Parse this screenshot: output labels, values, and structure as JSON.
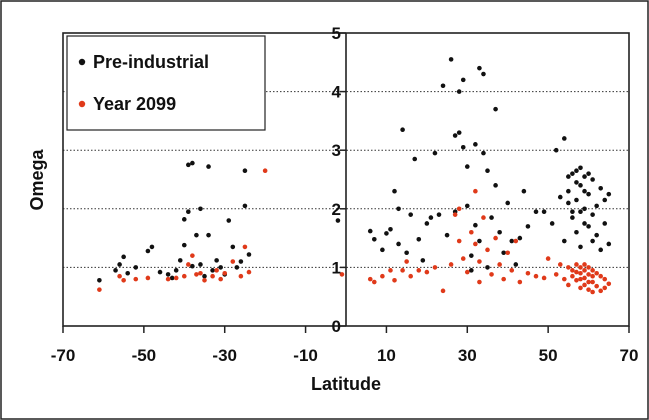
{
  "chart_data": {
    "type": "scatter",
    "xlabel": "Latitude",
    "ylabel": "Omega",
    "xlim": [
      -70,
      70
    ],
    "ylim": [
      0,
      5
    ],
    "x_ticks": [
      "-70",
      "-50",
      "-30",
      "-10",
      "10",
      "30",
      "50",
      "70"
    ],
    "y_ticks": [
      "0",
      "1",
      "2",
      "3",
      "4",
      "5"
    ],
    "grid": "horizontal dotted lines at 1, 2, 3 and 4",
    "legend_position": "top-left",
    "series": [
      {
        "name": "Pre-industrial",
        "color": "#111111",
        "points": [
          [
            -61,
            0.78
          ],
          [
            -57,
            0.95
          ],
          [
            -56,
            1.05
          ],
          [
            -55,
            1.18
          ],
          [
            -54,
            0.9
          ],
          [
            -52,
            1.0
          ],
          [
            -49,
            1.28
          ],
          [
            -48,
            1.35
          ],
          [
            -46,
            0.92
          ],
          [
            -44,
            0.88
          ],
          [
            -43,
            0.82
          ],
          [
            -42,
            0.95
          ],
          [
            -41,
            1.12
          ],
          [
            -40,
            1.38
          ],
          [
            -40,
            1.82
          ],
          [
            -39,
            2.75
          ],
          [
            -39,
            1.95
          ],
          [
            -38,
            1.02
          ],
          [
            -38,
            2.78
          ],
          [
            -37,
            1.55
          ],
          [
            -36,
            2.0
          ],
          [
            -36,
            1.05
          ],
          [
            -35,
            0.85
          ],
          [
            -34,
            2.72
          ],
          [
            -34,
            1.55
          ],
          [
            -33,
            0.95
          ],
          [
            -32,
            1.12
          ],
          [
            -31,
            1.0
          ],
          [
            -30,
            0.88
          ],
          [
            -29,
            1.8
          ],
          [
            -28,
            1.35
          ],
          [
            -27,
            1.0
          ],
          [
            -26,
            1.1
          ],
          [
            -25,
            2.05
          ],
          [
            -25,
            2.65
          ],
          [
            -24,
            1.22
          ],
          [
            -2,
            1.8
          ],
          [
            6,
            1.62
          ],
          [
            7,
            1.48
          ],
          [
            9,
            1.3
          ],
          [
            10,
            1.58
          ],
          [
            11,
            1.65
          ],
          [
            12,
            2.3
          ],
          [
            13,
            1.4
          ],
          [
            13,
            2.0
          ],
          [
            14,
            3.35
          ],
          [
            15,
            1.25
          ],
          [
            16,
            1.9
          ],
          [
            17,
            2.85
          ],
          [
            18,
            1.48
          ],
          [
            19,
            1.12
          ],
          [
            20,
            1.75
          ],
          [
            21,
            1.85
          ],
          [
            22,
            2.95
          ],
          [
            23,
            1.9
          ],
          [
            24,
            4.1
          ],
          [
            25,
            1.55
          ],
          [
            26,
            4.55
          ],
          [
            27,
            3.25
          ],
          [
            27,
            1.95
          ],
          [
            28,
            4.0
          ],
          [
            28,
            3.3
          ],
          [
            29,
            3.05
          ],
          [
            29,
            4.2
          ],
          [
            30,
            2.72
          ],
          [
            30,
            2.05
          ],
          [
            31,
            1.2
          ],
          [
            31,
            0.95
          ],
          [
            32,
            3.1
          ],
          [
            32,
            1.72
          ],
          [
            33,
            4.4
          ],
          [
            33,
            1.45
          ],
          [
            34,
            2.95
          ],
          [
            34,
            4.3
          ],
          [
            35,
            2.65
          ],
          [
            35,
            1.0
          ],
          [
            36,
            1.85
          ],
          [
            37,
            3.7
          ],
          [
            37,
            2.4
          ],
          [
            38,
            1.6
          ],
          [
            39,
            1.25
          ],
          [
            40,
            2.1
          ],
          [
            41,
            1.45
          ],
          [
            42,
            1.05
          ],
          [
            43,
            1.5
          ],
          [
            44,
            2.3
          ],
          [
            45,
            1.7
          ],
          [
            47,
            1.95
          ],
          [
            49,
            1.95
          ],
          [
            51,
            1.75
          ],
          [
            52,
            3.0
          ],
          [
            53,
            2.2
          ],
          [
            54,
            3.2
          ],
          [
            54,
            1.45
          ],
          [
            55,
            2.55
          ],
          [
            55,
            2.3
          ],
          [
            56,
            2.6
          ],
          [
            56,
            1.85
          ],
          [
            57,
            2.45
          ],
          [
            57,
            1.6
          ],
          [
            57,
            2.15
          ],
          [
            58,
            2.7
          ],
          [
            58,
            2.4
          ],
          [
            58,
            1.35
          ],
          [
            59,
            2.55
          ],
          [
            59,
            2.0
          ],
          [
            59,
            2.3
          ],
          [
            60,
            2.25
          ],
          [
            60,
            1.7
          ],
          [
            61,
            2.5
          ],
          [
            61,
            1.45
          ],
          [
            61,
            1.9
          ],
          [
            62,
            2.05
          ],
          [
            62,
            1.55
          ],
          [
            63,
            2.35
          ],
          [
            63,
            1.3
          ],
          [
            64,
            2.15
          ],
          [
            64,
            1.75
          ],
          [
            65,
            2.25
          ],
          [
            65,
            1.4
          ],
          [
            55,
            2.1
          ],
          [
            56,
            1.95
          ],
          [
            57,
            2.65
          ],
          [
            58,
            1.95
          ],
          [
            59,
            1.75
          ],
          [
            60,
            2.6
          ]
        ]
      },
      {
        "name": "Year 2099",
        "color": "#e03a1a",
        "points": [
          [
            -61,
            0.62
          ],
          [
            -56,
            0.85
          ],
          [
            -55,
            0.78
          ],
          [
            -52,
            0.8
          ],
          [
            -49,
            0.82
          ],
          [
            -44,
            0.8
          ],
          [
            -42,
            0.82
          ],
          [
            -40,
            0.85
          ],
          [
            -39,
            1.05
          ],
          [
            -38,
            1.2
          ],
          [
            -37,
            0.88
          ],
          [
            -36,
            0.9
          ],
          [
            -35,
            0.78
          ],
          [
            -33,
            0.85
          ],
          [
            -32,
            0.95
          ],
          [
            -31,
            0.8
          ],
          [
            -30,
            0.9
          ],
          [
            -28,
            1.1
          ],
          [
            -26,
            0.85
          ],
          [
            -25,
            1.35
          ],
          [
            -24,
            0.92
          ],
          [
            -20,
            2.65
          ],
          [
            -1,
            0.88
          ],
          [
            6,
            0.8
          ],
          [
            7,
            0.75
          ],
          [
            9,
            0.85
          ],
          [
            11,
            0.95
          ],
          [
            12,
            0.78
          ],
          [
            14,
            0.95
          ],
          [
            15,
            1.1
          ],
          [
            16,
            0.85
          ],
          [
            18,
            0.95
          ],
          [
            20,
            0.92
          ],
          [
            22,
            1.0
          ],
          [
            24,
            0.6
          ],
          [
            26,
            1.05
          ],
          [
            27,
            1.9
          ],
          [
            28,
            1.45
          ],
          [
            28,
            2.0
          ],
          [
            29,
            1.15
          ],
          [
            30,
            0.92
          ],
          [
            31,
            1.6
          ],
          [
            32,
            1.4
          ],
          [
            32,
            2.3
          ],
          [
            33,
            1.1
          ],
          [
            33,
            0.75
          ],
          [
            34,
            1.85
          ],
          [
            35,
            1.3
          ],
          [
            36,
            0.88
          ],
          [
            37,
            1.5
          ],
          [
            38,
            1.05
          ],
          [
            39,
            0.8
          ],
          [
            40,
            1.25
          ],
          [
            41,
            0.95
          ],
          [
            42,
            1.45
          ],
          [
            43,
            0.75
          ],
          [
            45,
            0.9
          ],
          [
            47,
            0.85
          ],
          [
            49,
            0.82
          ],
          [
            50,
            1.15
          ],
          [
            52,
            0.88
          ],
          [
            53,
            1.05
          ],
          [
            54,
            0.8
          ],
          [
            55,
            1.0
          ],
          [
            55,
            0.7
          ],
          [
            56,
            0.95
          ],
          [
            56,
            0.85
          ],
          [
            57,
            1.05
          ],
          [
            57,
            0.78
          ],
          [
            58,
            1.0
          ],
          [
            58,
            0.9
          ],
          [
            58,
            0.65
          ],
          [
            59,
            1.05
          ],
          [
            59,
            0.82
          ],
          [
            59,
            0.7
          ],
          [
            60,
            1.0
          ],
          [
            60,
            0.88
          ],
          [
            60,
            0.62
          ],
          [
            61,
            0.95
          ],
          [
            61,
            0.75
          ],
          [
            61,
            0.58
          ],
          [
            62,
            0.9
          ],
          [
            62,
            0.68
          ],
          [
            63,
            0.85
          ],
          [
            63,
            0.6
          ],
          [
            64,
            0.8
          ],
          [
            64,
            0.65
          ],
          [
            65,
            0.72
          ],
          [
            57,
            0.92
          ],
          [
            58,
            0.8
          ],
          [
            59,
            0.95
          ],
          [
            60,
            0.75
          ],
          [
            61,
            0.85
          ]
        ]
      }
    ]
  }
}
